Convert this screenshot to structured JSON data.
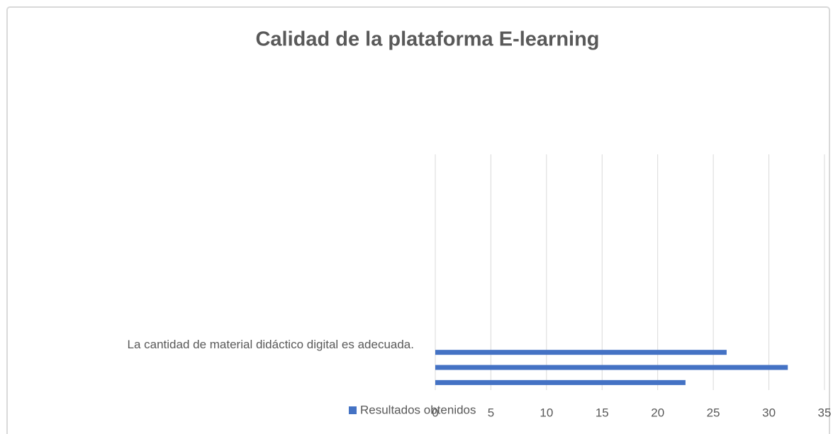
{
  "chart_data": {
    "type": "barh",
    "title": "Calidad de la plataforma E-learning",
    "categories": [
      "La cantidad de material didáctico digital es adecuada.",
      null,
      null
    ],
    "series": [
      {
        "name": "Resultados obtenidos",
        "color": "#4472c4",
        "values": [
          26.2,
          31.7,
          22.5
        ]
      }
    ],
    "xlim": [
      0,
      35
    ],
    "xticks": [
      0,
      5,
      10,
      15,
      20,
      25,
      30,
      35
    ],
    "grid": true,
    "legend": "bottom"
  }
}
